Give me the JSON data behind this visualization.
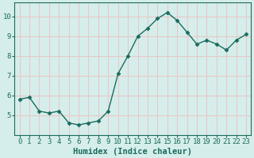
{
  "x": [
    0,
    1,
    2,
    3,
    4,
    5,
    6,
    7,
    8,
    9,
    10,
    11,
    12,
    13,
    14,
    15,
    16,
    17,
    18,
    19,
    20,
    21,
    22,
    23
  ],
  "y": [
    5.8,
    5.9,
    5.2,
    5.1,
    5.2,
    4.6,
    4.5,
    4.6,
    4.7,
    5.2,
    7.1,
    8.0,
    9.0,
    9.4,
    9.9,
    10.2,
    9.8,
    9.2,
    8.6,
    8.8,
    8.6,
    8.3,
    8.8,
    9.1
  ],
  "line_color": "#1a6b5e",
  "bg_color": "#d6eeeb",
  "grid_color": "#e8c8c8",
  "xlabel": "Humidex (Indice chaleur)",
  "xlim": [
    -0.5,
    23.5
  ],
  "ylim": [
    4.0,
    10.7
  ],
  "yticks": [
    5,
    6,
    7,
    8,
    9,
    10
  ],
  "xticks": [
    0,
    1,
    2,
    3,
    4,
    5,
    6,
    7,
    8,
    9,
    10,
    11,
    12,
    13,
    14,
    15,
    16,
    17,
    18,
    19,
    20,
    21,
    22,
    23
  ],
  "xtick_labels": [
    "0",
    "1",
    "2",
    "3",
    "4",
    "5",
    "6",
    "7",
    "8",
    "9",
    "10",
    "11",
    "12",
    "13",
    "14",
    "15",
    "16",
    "17",
    "18",
    "19",
    "20",
    "21",
    "22",
    "23"
  ],
  "marker": "D",
  "marker_size": 2.5,
  "line_width": 1.0,
  "font_color": "#1a6b5e",
  "xlabel_fontsize": 7.5,
  "tick_fontsize": 6.5
}
